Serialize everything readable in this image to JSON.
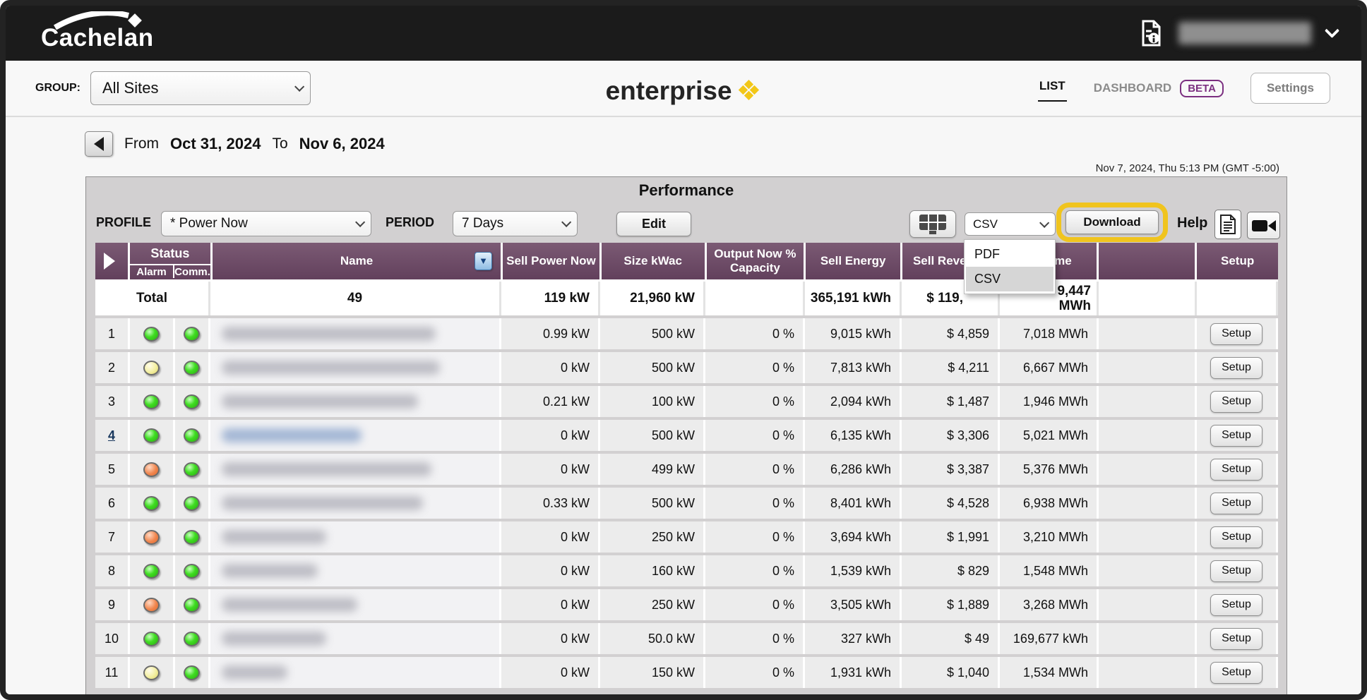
{
  "colors": {
    "header_purple": "#6d4b67",
    "highlight_yellow": "#f0c41e",
    "brand_yellow": "#f2c718",
    "status_green": "#3fdd21",
    "status_yellow": "#f3efa0",
    "status_orange": "#f0854d",
    "beta_purple": "#7b2f80"
  },
  "topbar": {
    "logo_text": "Cachelan",
    "doc_info_icon": "document-info-icon",
    "account_chevron_icon": "chevron-down-icon"
  },
  "navbar": {
    "group_label": "GROUP:",
    "group_value": "All Sites",
    "brand_text": "enterprise",
    "brand_mark": "❖",
    "tabs": {
      "list": "LIST",
      "dashboard": "DASHBOARD"
    },
    "beta_badge": "BETA",
    "settings_label": "Settings"
  },
  "daterange": {
    "from_label": "From",
    "from_value": "Oct 31, 2024",
    "to_label": "To",
    "to_value": "Nov 6, 2024"
  },
  "timestamp": "Nov 7, 2024, Thu 5:13 PM (GMT -5:00)",
  "panel": {
    "title": "Performance",
    "profile_label": "PROFILE",
    "profile_value": "* Power Now",
    "period_label": "PERIOD",
    "period_value": "7 Days",
    "edit_label": "Edit",
    "format_selected": "CSV",
    "format_options": [
      "PDF",
      "CSV"
    ],
    "download_label": "Download",
    "help_label": "Help"
  },
  "table": {
    "headers": {
      "status": "Status",
      "alarm": "Alarm",
      "comm": "Comm.",
      "name": "Name",
      "sell_power_now": "Sell Power Now",
      "size_kwac": "Size kWac",
      "output_now": "Output Now % Capacity",
      "sell_energy": "Sell Energy",
      "sell_revenue": "Sell Revenue",
      "lifetime": "Lifetime",
      "setup": "Setup"
    },
    "setup_button_label": "Setup",
    "total": {
      "label": "Total",
      "count": "49",
      "power": "119 kW",
      "size": "21,960 kW",
      "energy": "365,191 kWh",
      "revenue": "$ 119,",
      "lifetime": "9,447\nMWh"
    },
    "rows": [
      {
        "num": "1",
        "link": false,
        "alarm": "green",
        "comm": "green",
        "power": "0.99 kW",
        "size": "500 kW",
        "output": "0 %",
        "energy": "9,015 kWh",
        "revenue": "$ 4,859",
        "lifetime": "7,018 MWh",
        "blur_w": 303
      },
      {
        "num": "2",
        "link": false,
        "alarm": "yellow",
        "comm": "green",
        "power": "0 kW",
        "size": "500 kW",
        "output": "0 %",
        "energy": "7,813 kWh",
        "revenue": "$ 4,211",
        "lifetime": "6,667 MWh",
        "blur_w": 309
      },
      {
        "num": "3",
        "link": false,
        "alarm": "green",
        "comm": "green",
        "power": "0.21 kW",
        "size": "100 kW",
        "output": "0 %",
        "energy": "2,094 kWh",
        "revenue": "$ 1,487",
        "lifetime": "1,946 MWh",
        "blur_w": 278
      },
      {
        "num": "4",
        "link": true,
        "alarm": "green",
        "comm": "green",
        "power": "0 kW",
        "size": "500 kW",
        "output": "0 %",
        "energy": "6,135 kWh",
        "revenue": "$ 3,306",
        "lifetime": "5,021 MWh",
        "blur_w": 198
      },
      {
        "num": "5",
        "link": false,
        "alarm": "orange",
        "comm": "green",
        "power": "0 kW",
        "size": "499 kW",
        "output": "0 %",
        "energy": "6,286 kWh",
        "revenue": "$ 3,387",
        "lifetime": "5,376 MWh",
        "blur_w": 297
      },
      {
        "num": "6",
        "link": false,
        "alarm": "green",
        "comm": "green",
        "power": "0.33 kW",
        "size": "500 kW",
        "output": "0 %",
        "energy": "8,401 kWh",
        "revenue": "$ 4,528",
        "lifetime": "6,938 MWh",
        "blur_w": 285
      },
      {
        "num": "7",
        "link": false,
        "alarm": "orange",
        "comm": "green",
        "power": "0 kW",
        "size": "250 kW",
        "output": "0 %",
        "energy": "3,694 kWh",
        "revenue": "$ 1,991",
        "lifetime": "3,210 MWh",
        "blur_w": 148
      },
      {
        "num": "8",
        "link": false,
        "alarm": "green",
        "comm": "green",
        "power": "0 kW",
        "size": "160 kW",
        "output": "0 %",
        "energy": "1,539 kWh",
        "revenue": "$ 829",
        "lifetime": "1,548 MWh",
        "blur_w": 136
      },
      {
        "num": "9",
        "link": false,
        "alarm": "orange",
        "comm": "green",
        "power": "0 kW",
        "size": "250 kW",
        "output": "0 %",
        "energy": "3,505 kWh",
        "revenue": "$ 1,889",
        "lifetime": "3,268 MWh",
        "blur_w": 192
      },
      {
        "num": "10",
        "link": false,
        "alarm": "green",
        "comm": "green",
        "power": "0 kW",
        "size": "50.0 kW",
        "output": "0 %",
        "energy": "327 kWh",
        "revenue": "$ 49",
        "lifetime": "169,677 kWh",
        "blur_w": 148
      },
      {
        "num": "11",
        "link": false,
        "alarm": "yellow",
        "comm": "green",
        "power": "0 kW",
        "size": "150 kW",
        "output": "0 %",
        "energy": "1,931 kWh",
        "revenue": "$ 1,040",
        "lifetime": "1,534 MWh",
        "blur_w": 93
      }
    ]
  }
}
